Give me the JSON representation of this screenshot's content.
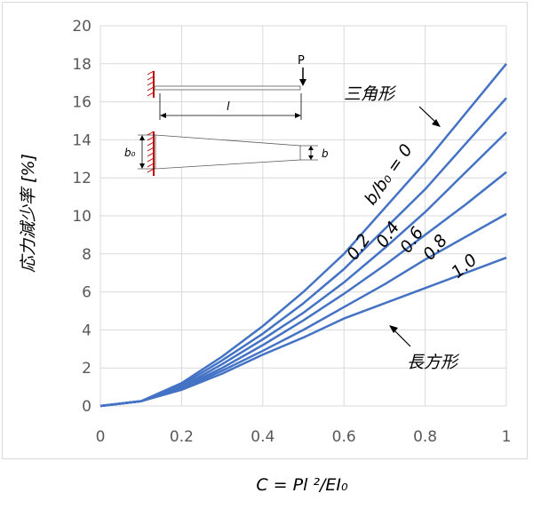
{
  "chart_data": {
    "type": "line",
    "xlabel": "C = Pl ²/EI₀",
    "ylabel": "応力減少率 [%]",
    "xlim": [
      0,
      1
    ],
    "ylim": [
      0,
      20
    ],
    "xticks": [
      "0",
      "0.2",
      "0.4",
      "0.6",
      "0.8",
      "1"
    ],
    "yticks": [
      "0",
      "2",
      "4",
      "6",
      "8",
      "10",
      "12",
      "14",
      "16",
      "18",
      "20"
    ],
    "grid": true,
    "series_color": "#4472c4",
    "x": [
      0,
      0.1,
      0.2,
      0.3,
      0.4,
      0.5,
      0.6,
      0.7,
      0.8,
      0.9,
      1.0
    ],
    "series": [
      {
        "label": "0",
        "values": [
          0,
          0.25,
          1.2,
          2.6,
          4.2,
          6.0,
          8.0,
          10.4,
          12.8,
          15.4,
          18.0
        ]
      },
      {
        "label": "0.2",
        "values": [
          0,
          0.25,
          1.1,
          2.4,
          3.8,
          5.4,
          7.2,
          9.3,
          11.4,
          13.8,
          16.2
        ]
      },
      {
        "label": "0.4",
        "values": [
          0,
          0.25,
          1.0,
          2.2,
          3.5,
          4.9,
          6.5,
          8.3,
          10.2,
          12.3,
          14.4
        ]
      },
      {
        "label": "0.6",
        "values": [
          0,
          0.25,
          0.95,
          2.0,
          3.2,
          4.5,
          5.9,
          7.4,
          9.0,
          10.6,
          12.3
        ]
      },
      {
        "label": "0.8",
        "values": [
          0,
          0.25,
          0.9,
          1.85,
          2.9,
          4.0,
          5.2,
          6.4,
          7.7,
          8.9,
          10.1
        ]
      },
      {
        "label": "1.0",
        "values": [
          0,
          0.25,
          0.85,
          1.7,
          2.7,
          3.6,
          4.6,
          5.4,
          6.2,
          7.0,
          7.8
        ]
      }
    ],
    "annotations": {
      "triangle": "三角形",
      "rectangle": "長方形",
      "ratio_label": "b/b₀ = 0",
      "labels_02": "0.2",
      "labels_04": "0.4",
      "labels_06": "0.6",
      "labels_08": "0.8",
      "labels_10": "1.0"
    },
    "inset": {
      "load": "P",
      "length": "l",
      "root_width": "b₀",
      "tip_width": "b"
    }
  }
}
